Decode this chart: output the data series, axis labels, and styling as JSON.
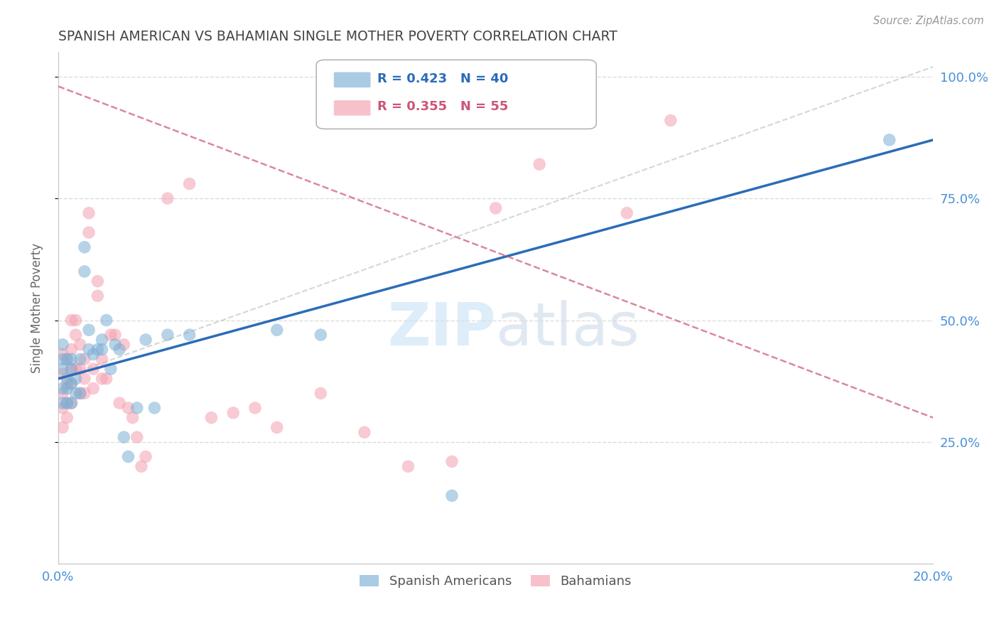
{
  "title": "SPANISH AMERICAN VS BAHAMIAN SINGLE MOTHER POVERTY CORRELATION CHART",
  "source": "Source: ZipAtlas.com",
  "ylabel": "Single Mother Poverty",
  "xmin": 0.0,
  "xmax": 0.2,
  "ymin": 0.0,
  "ymax": 1.05,
  "yticks": [
    0.25,
    0.5,
    0.75,
    1.0
  ],
  "ytick_labels": [
    "25.0%",
    "50.0%",
    "75.0%",
    "100.0%"
  ],
  "xticks": [
    0.0,
    0.05,
    0.1,
    0.15,
    0.2
  ],
  "xtick_labels": [
    "0.0%",
    "",
    "",
    "",
    "20.0%"
  ],
  "blue_R": 0.423,
  "blue_N": 40,
  "pink_R": 0.355,
  "pink_N": 55,
  "blue_color": "#7BAFD4",
  "pink_color": "#F4A0B0",
  "blue_label": "Spanish Americans",
  "pink_label": "Bahamians",
  "title_color": "#444444",
  "axis_label_color": "#666666",
  "tick_label_color": "#4A90D9",
  "grid_color": "#DDDDDD",
  "blue_line_x": [
    0.0,
    0.2
  ],
  "blue_line_y": [
    0.38,
    0.87
  ],
  "pink_line_x": [
    0.0,
    0.2
  ],
  "pink_line_y": [
    0.98,
    0.3
  ],
  "diag_line_x": [
    0.0,
    0.2
  ],
  "diag_line_y": [
    0.38,
    1.02
  ],
  "blue_scatter_x": [
    0.001,
    0.001,
    0.001,
    0.001,
    0.001,
    0.002,
    0.002,
    0.002,
    0.002,
    0.003,
    0.003,
    0.003,
    0.003,
    0.004,
    0.004,
    0.005,
    0.005,
    0.006,
    0.006,
    0.007,
    0.007,
    0.008,
    0.009,
    0.01,
    0.01,
    0.011,
    0.012,
    0.013,
    0.014,
    0.015,
    0.016,
    0.018,
    0.02,
    0.022,
    0.025,
    0.03,
    0.05,
    0.06,
    0.09,
    0.19
  ],
  "blue_scatter_y": [
    0.33,
    0.36,
    0.4,
    0.42,
    0.45,
    0.33,
    0.36,
    0.38,
    0.42,
    0.33,
    0.37,
    0.4,
    0.42,
    0.35,
    0.38,
    0.35,
    0.42,
    0.6,
    0.65,
    0.44,
    0.48,
    0.43,
    0.44,
    0.44,
    0.46,
    0.5,
    0.4,
    0.45,
    0.44,
    0.26,
    0.22,
    0.32,
    0.46,
    0.32,
    0.47,
    0.47,
    0.48,
    0.47,
    0.14,
    0.87
  ],
  "pink_scatter_x": [
    0.001,
    0.001,
    0.001,
    0.001,
    0.001,
    0.002,
    0.002,
    0.002,
    0.002,
    0.003,
    0.003,
    0.003,
    0.003,
    0.003,
    0.004,
    0.004,
    0.004,
    0.005,
    0.005,
    0.005,
    0.006,
    0.006,
    0.006,
    0.007,
    0.007,
    0.008,
    0.008,
    0.009,
    0.009,
    0.01,
    0.01,
    0.011,
    0.012,
    0.013,
    0.014,
    0.015,
    0.016,
    0.017,
    0.018,
    0.019,
    0.02,
    0.025,
    0.03,
    0.035,
    0.04,
    0.045,
    0.05,
    0.06,
    0.07,
    0.08,
    0.09,
    0.1,
    0.11,
    0.13,
    0.14
  ],
  "pink_scatter_y": [
    0.28,
    0.32,
    0.35,
    0.39,
    0.43,
    0.3,
    0.33,
    0.37,
    0.42,
    0.33,
    0.37,
    0.4,
    0.44,
    0.5,
    0.4,
    0.47,
    0.5,
    0.35,
    0.4,
    0.45,
    0.35,
    0.38,
    0.42,
    0.68,
    0.72,
    0.36,
    0.4,
    0.55,
    0.58,
    0.38,
    0.42,
    0.38,
    0.47,
    0.47,
    0.33,
    0.45,
    0.32,
    0.3,
    0.26,
    0.2,
    0.22,
    0.75,
    0.78,
    0.3,
    0.31,
    0.32,
    0.28,
    0.35,
    0.27,
    0.2,
    0.21,
    0.73,
    0.82,
    0.72,
    0.91
  ]
}
